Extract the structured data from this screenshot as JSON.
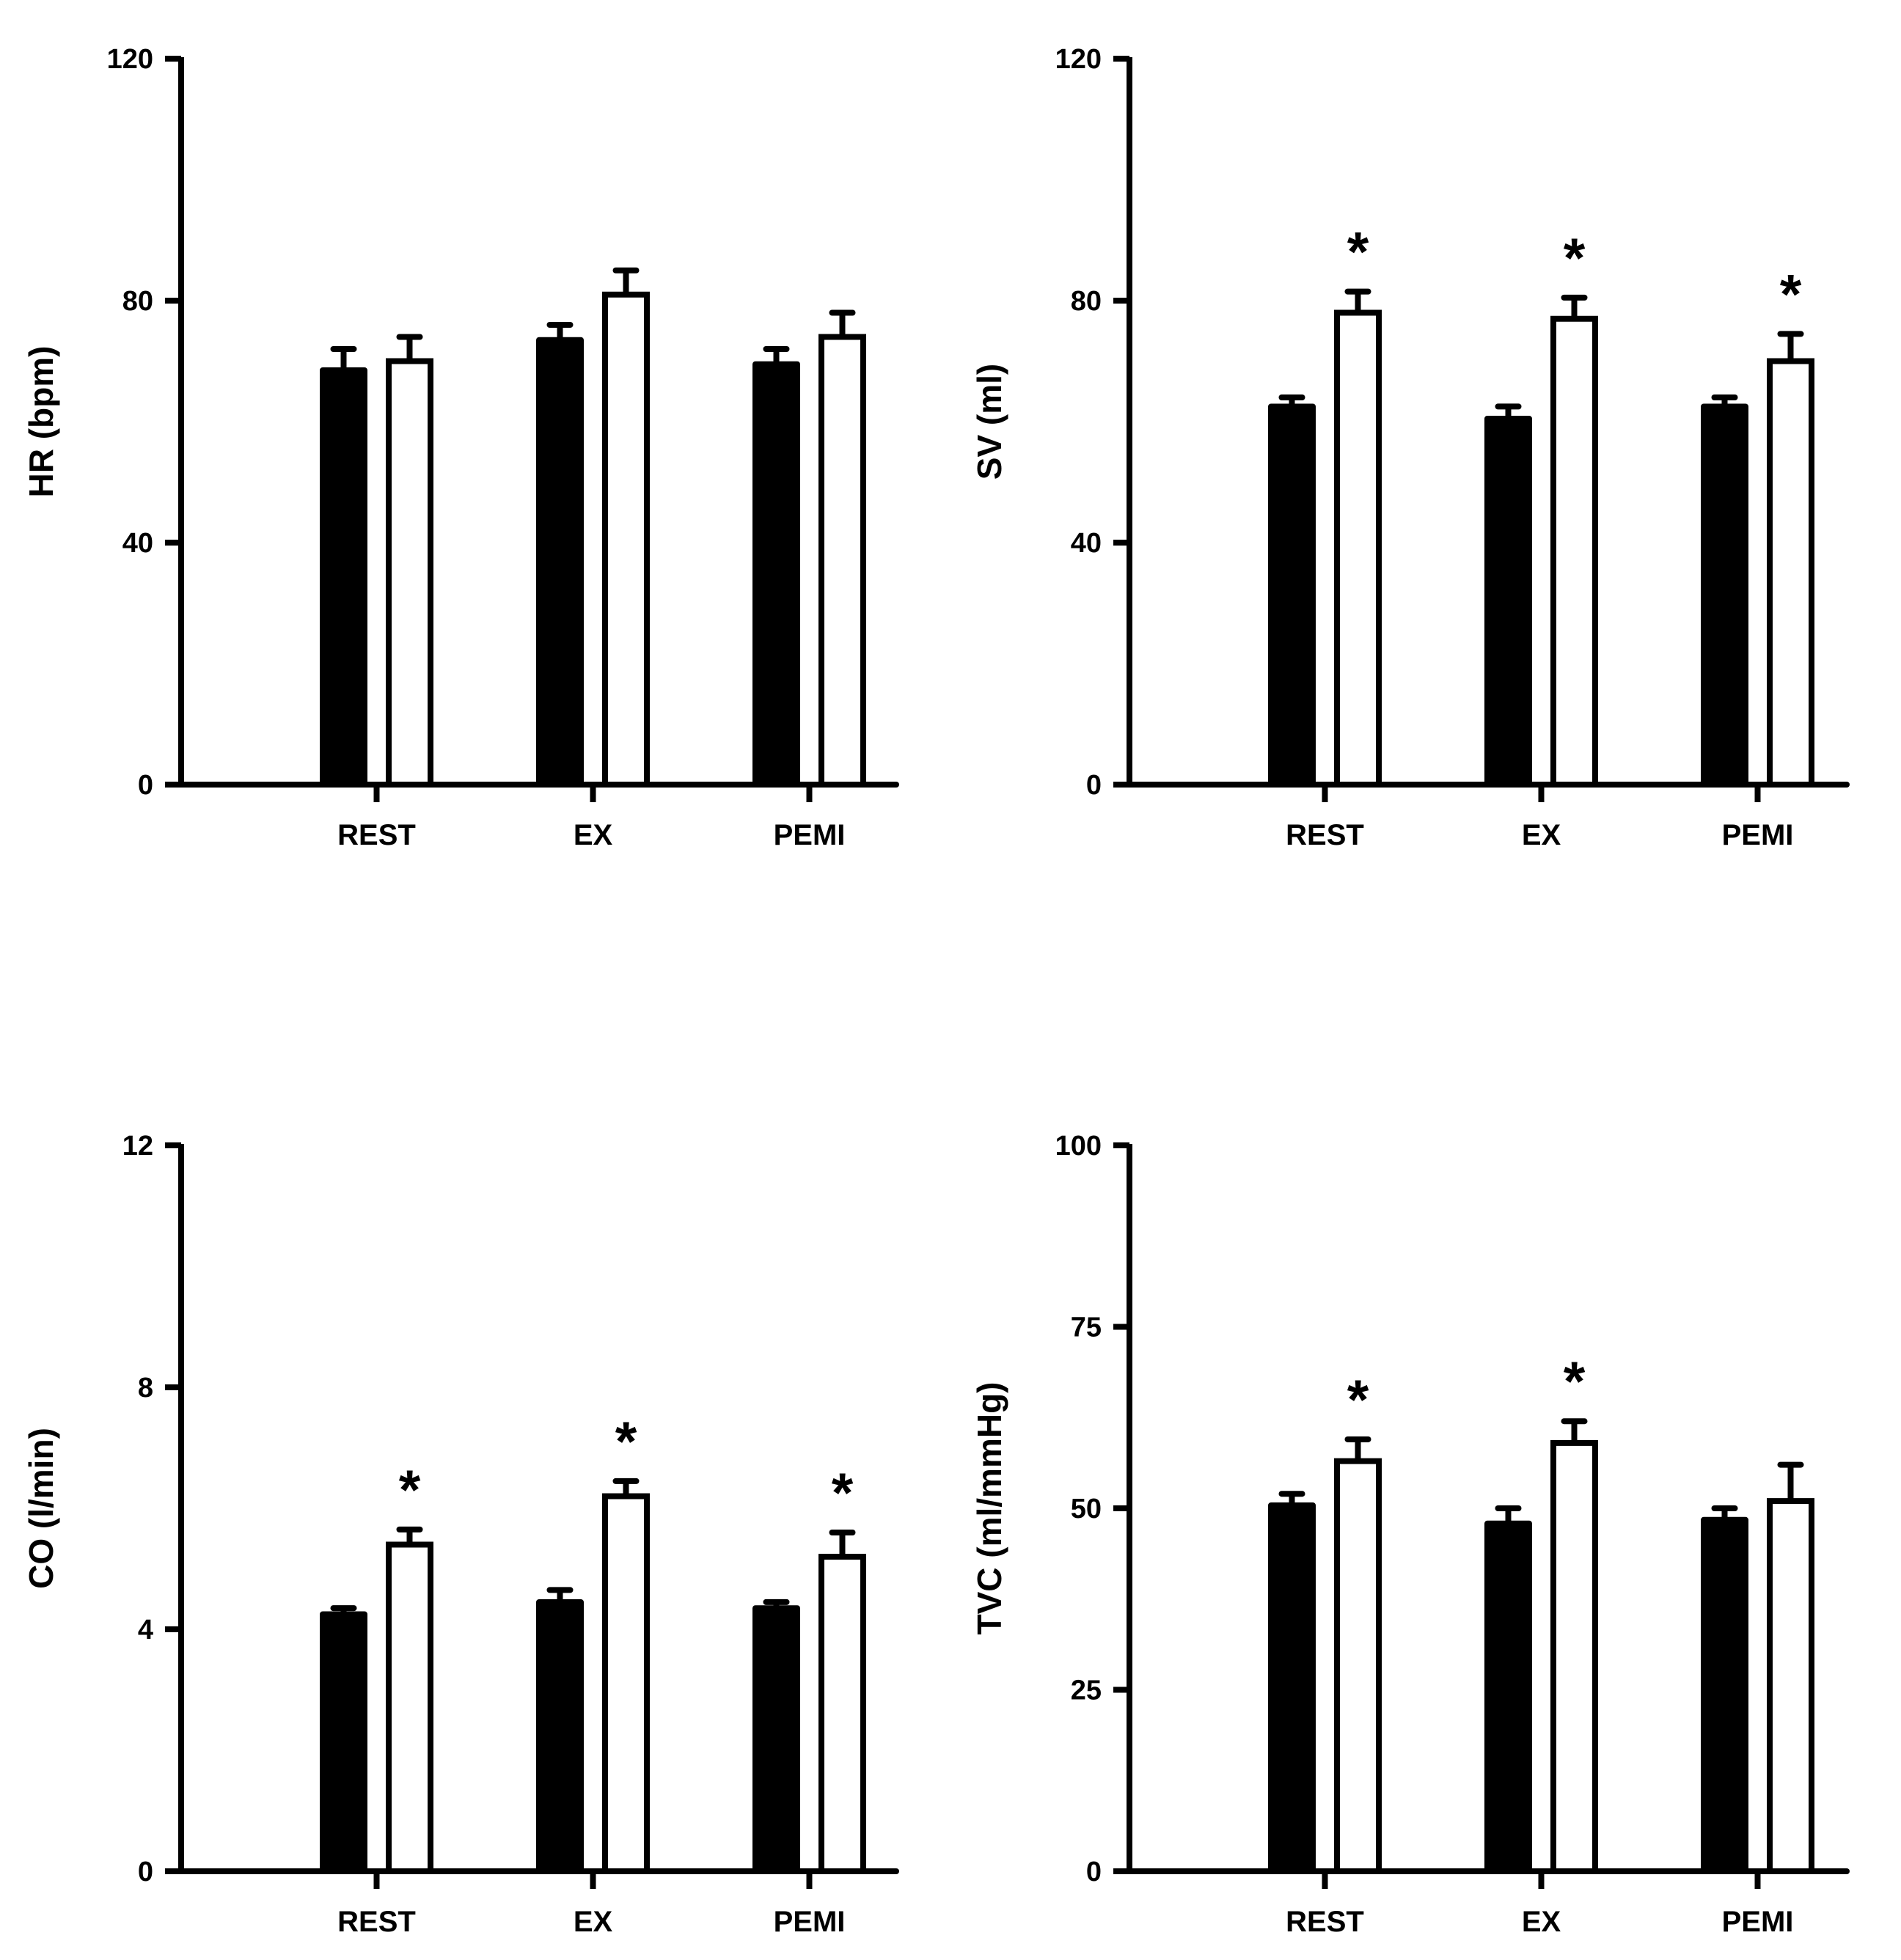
{
  "chart_data": [
    {
      "type": "bar",
      "ylabel": "HR (bpm)",
      "categories": [
        "REST",
        "EX",
        "PEMI"
      ],
      "ylim": [
        0,
        120
      ],
      "yticks": [
        "0",
        "40",
        "80",
        "120"
      ],
      "series": [
        {
          "name": "filled",
          "fill": "black",
          "values": [
            68,
            73,
            69
          ],
          "errors": [
            4,
            3,
            3
          ]
        },
        {
          "name": "open",
          "fill": "white",
          "values": [
            70,
            81,
            74
          ],
          "errors": [
            4,
            4,
            4
          ]
        }
      ],
      "significance": [
        "",
        "",
        ""
      ]
    },
    {
      "type": "bar",
      "ylabel": "SV (ml)",
      "categories": [
        "REST",
        "EX",
        "PEMI"
      ],
      "ylim": [
        0,
        120
      ],
      "yticks": [
        "0",
        "40",
        "80",
        "120"
      ],
      "series": [
        {
          "name": "filled",
          "fill": "black",
          "values": [
            62,
            60,
            62
          ],
          "errors": [
            2,
            2.5,
            2
          ]
        },
        {
          "name": "open",
          "fill": "white",
          "values": [
            78,
            77,
            70
          ],
          "errors": [
            3.5,
            3.5,
            4.5
          ]
        }
      ],
      "significance": [
        "*",
        "*",
        "*"
      ]
    },
    {
      "type": "bar",
      "ylabel": "CO (l/min)",
      "categories": [
        "REST",
        "EX",
        "PEMI"
      ],
      "ylim": [
        0,
        12
      ],
      "yticks": [
        "0",
        "4",
        "8",
        "12"
      ],
      "series": [
        {
          "name": "filled",
          "fill": "black",
          "values": [
            4.2,
            4.4,
            4.3
          ],
          "errors": [
            0.15,
            0.25,
            0.15
          ]
        },
        {
          "name": "open",
          "fill": "white",
          "values": [
            5.4,
            6.2,
            5.2
          ],
          "errors": [
            0.25,
            0.25,
            0.4
          ]
        }
      ],
      "significance": [
        "*",
        "*",
        "*"
      ]
    },
    {
      "type": "bar",
      "ylabel": "TVC (ml/mmHg)",
      "categories": [
        "REST",
        "EX",
        "PEMI"
      ],
      "ylim": [
        0,
        100
      ],
      "yticks": [
        "0",
        "25",
        "50",
        "75",
        "100"
      ],
      "series": [
        {
          "name": "filled",
          "fill": "black",
          "values": [
            50,
            47.5,
            48
          ],
          "errors": [
            2,
            2.5,
            2
          ]
        },
        {
          "name": "open",
          "fill": "white",
          "values": [
            56.5,
            59,
            51
          ],
          "errors": [
            3,
            3,
            5
          ]
        }
      ],
      "significance": [
        "*",
        "*",
        ""
      ]
    }
  ]
}
